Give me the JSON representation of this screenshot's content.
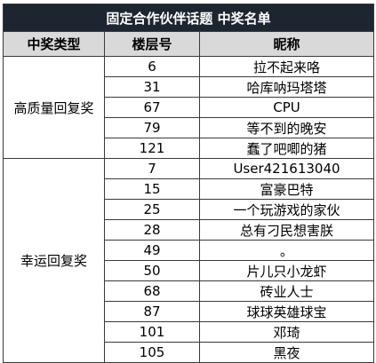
{
  "title": "固定合作伙伴话题 中奖名单",
  "headers": {
    "category": "中奖类型",
    "floor": "楼层号",
    "nickname": "昵称"
  },
  "groups": [
    {
      "category": "高质量回复奖",
      "rows": [
        {
          "floor": "6",
          "nickname": "拉不起来咯"
        },
        {
          "floor": "31",
          "nickname": "哈库呐玛塔塔"
        },
        {
          "floor": "67",
          "nickname": "CPU"
        },
        {
          "floor": "79",
          "nickname": "等不到的晚安"
        },
        {
          "floor": "121",
          "nickname": "蠢了吧唧的猪"
        }
      ]
    },
    {
      "category": "幸运回复奖",
      "rows": [
        {
          "floor": "7",
          "nickname": "User421613040"
        },
        {
          "floor": "15",
          "nickname": "富豪巴特"
        },
        {
          "floor": "25",
          "nickname": "一个玩游戏的家伙"
        },
        {
          "floor": "28",
          "nickname": "总有刁民想害朕"
        },
        {
          "floor": "49",
          "nickname": "。"
        },
        {
          "floor": "50",
          "nickname": "片儿只小龙虾"
        },
        {
          "floor": "68",
          "nickname": "砖业人士"
        },
        {
          "floor": "87",
          "nickname": "球球英雄球宝"
        },
        {
          "floor": "101",
          "nickname": "邓琦"
        },
        {
          "floor": "105",
          "nickname": "黑夜"
        }
      ]
    }
  ]
}
